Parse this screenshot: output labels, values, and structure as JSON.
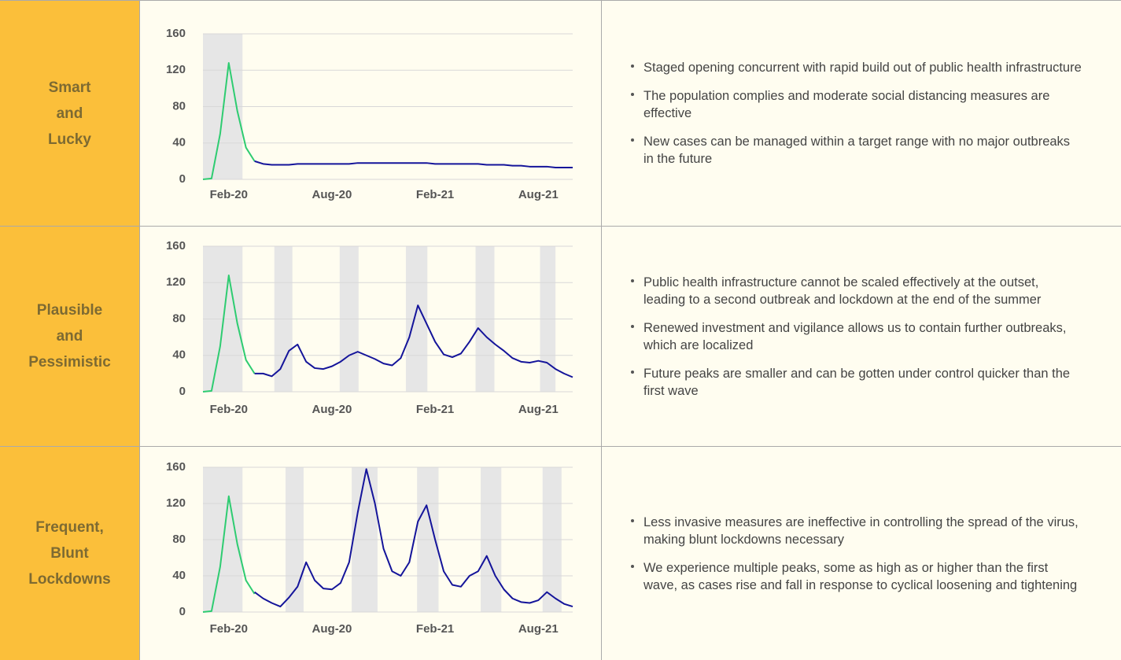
{
  "rows": [
    {
      "label": [
        "Smart",
        "and",
        "Lucky"
      ],
      "bullets": [
        "Staged opening concurrent with rapid build out of public health infrastructure",
        "The population complies and moderate social distancing measures are effective",
        "New cases can be managed within a target range with no major outbreaks in the future"
      ]
    },
    {
      "label": [
        "Plausible",
        "and",
        "Pessimistic"
      ],
      "bullets": [
        "Public health infrastructure cannot be scaled effectively at the outset, leading to a second outbreak and lockdown at the end of the summer",
        "Renewed investment and vigilance allows us to contain further outbreaks, which are localized",
        "Future peaks are smaller and can be gotten under control quicker than the first wave"
      ]
    },
    {
      "label": [
        "Frequent,",
        "Blunt",
        "Lockdowns"
      ],
      "bullets": [
        "Less invasive measures are ineffective in controlling the spread of the virus, making blunt lockdowns necessary",
        "We experience multiple peaks, some as high as or higher than the first wave, as cases rise and fall in response to cyclical loosening and tightening"
      ]
    }
  ],
  "chart_data": [
    {
      "type": "line",
      "categories": [
        null,
        null,
        null,
        "Feb-20",
        null,
        null,
        null,
        null,
        null,
        null,
        null,
        null,
        null,
        null,
        null,
        "Aug-20",
        null,
        null,
        null,
        null,
        null,
        null,
        null,
        null,
        null,
        null,
        null,
        "Feb-21",
        null,
        null,
        null,
        null,
        null,
        null,
        null,
        null,
        null,
        null,
        null,
        "Aug-21",
        null,
        null,
        null,
        null
      ],
      "series": [
        {
          "color": "#2ecc71",
          "values": [
            0,
            1,
            50,
            128,
            75,
            35,
            20,
            null,
            null,
            null,
            null,
            null,
            null,
            null,
            null,
            null,
            null,
            null,
            null,
            null,
            null,
            null,
            null,
            null,
            null,
            null,
            null,
            null,
            null,
            null,
            null,
            null,
            null,
            null,
            null,
            null,
            null,
            null,
            null,
            null,
            null,
            null,
            null,
            null
          ]
        },
        {
          "color": "#14149a",
          "values": [
            null,
            null,
            null,
            null,
            null,
            null,
            20,
            17,
            16,
            16,
            16,
            17,
            17,
            17,
            17,
            17,
            17,
            17,
            18,
            18,
            18,
            18,
            18,
            18,
            18,
            18,
            18,
            17,
            17,
            17,
            17,
            17,
            17,
            16,
            16,
            16,
            15,
            15,
            14,
            14,
            14,
            13,
            13,
            13
          ]
        }
      ],
      "shaded": [
        [
          0,
          4.6
        ]
      ],
      "ylim": [
        0,
        160
      ],
      "yticks": [
        0,
        40,
        80,
        120,
        160
      ],
      "grid": true
    },
    {
      "type": "line",
      "categories": [
        null,
        null,
        null,
        "Feb-20",
        null,
        null,
        null,
        null,
        null,
        null,
        null,
        null,
        null,
        null,
        null,
        "Aug-20",
        null,
        null,
        null,
        null,
        null,
        null,
        null,
        null,
        null,
        null,
        null,
        "Feb-21",
        null,
        null,
        null,
        null,
        null,
        null,
        null,
        null,
        null,
        null,
        null,
        "Aug-21",
        null,
        null,
        null,
        null
      ],
      "series": [
        {
          "color": "#2ecc71",
          "values": [
            0,
            1,
            50,
            128,
            75,
            35,
            20,
            null,
            null,
            null,
            null,
            null,
            null,
            null,
            null,
            null,
            null,
            null,
            null,
            null,
            null,
            null,
            null,
            null,
            null,
            null,
            null,
            null,
            null,
            null,
            null,
            null,
            null,
            null,
            null,
            null,
            null,
            null,
            null,
            null,
            null,
            null,
            null,
            null
          ]
        },
        {
          "color": "#14149a",
          "values": [
            null,
            null,
            null,
            null,
            null,
            null,
            20,
            20,
            17,
            25,
            45,
            52,
            33,
            26,
            25,
            28,
            33,
            40,
            44,
            40,
            36,
            31,
            29,
            37,
            60,
            95,
            75,
            55,
            41,
            38,
            42,
            55,
            70,
            60,
            52,
            45,
            37,
            33,
            32,
            34,
            32,
            25,
            20,
            16
          ]
        }
      ],
      "shaded": [
        [
          0,
          4.6
        ],
        [
          8.3,
          10.4
        ],
        [
          15.9,
          18.1
        ],
        [
          23.6,
          26.1
        ],
        [
          31.7,
          33.9
        ],
        [
          39.2,
          41
        ]
      ],
      "ylim": [
        0,
        160
      ],
      "yticks": [
        0,
        40,
        80,
        120,
        160
      ],
      "grid": true
    },
    {
      "type": "line",
      "categories": [
        null,
        null,
        null,
        "Feb-20",
        null,
        null,
        null,
        null,
        null,
        null,
        null,
        null,
        null,
        null,
        null,
        "Aug-20",
        null,
        null,
        null,
        null,
        null,
        null,
        null,
        null,
        null,
        null,
        null,
        "Feb-21",
        null,
        null,
        null,
        null,
        null,
        null,
        null,
        null,
        null,
        null,
        null,
        "Aug-21",
        null,
        null,
        null,
        null
      ],
      "series": [
        {
          "color": "#2ecc71",
          "values": [
            0,
            1,
            50,
            128,
            75,
            35,
            20,
            null,
            null,
            null,
            null,
            null,
            null,
            null,
            null,
            null,
            null,
            null,
            null,
            null,
            null,
            null,
            null,
            null,
            null,
            null,
            null,
            null,
            null,
            null,
            null,
            null,
            null,
            null,
            null,
            null,
            null,
            null,
            null,
            null,
            null,
            null,
            null,
            null
          ]
        },
        {
          "color": "#14149a",
          "values": [
            null,
            null,
            null,
            null,
            null,
            null,
            22,
            15,
            10,
            6,
            16,
            28,
            55,
            35,
            26,
            25,
            32,
            55,
            110,
            158,
            120,
            70,
            45,
            40,
            55,
            100,
            118,
            80,
            45,
            30,
            28,
            40,
            45,
            62,
            40,
            25,
            15,
            11,
            10,
            13,
            22,
            15,
            9,
            6
          ]
        }
      ],
      "shaded": [
        [
          0,
          4.6
        ],
        [
          9.6,
          11.7
        ],
        [
          17.3,
          20.3
        ],
        [
          24.9,
          27.4
        ],
        [
          32.3,
          34.7
        ],
        [
          39.5,
          41.7
        ]
      ],
      "ylim": [
        0,
        160
      ],
      "yticks": [
        0,
        40,
        80,
        120,
        160
      ],
      "grid": true
    }
  ]
}
